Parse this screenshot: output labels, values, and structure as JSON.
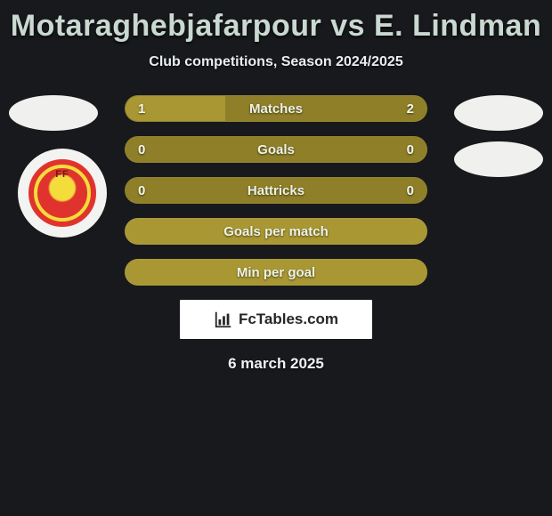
{
  "header": {
    "title": "Motaraghebjafarpour vs E. Lindman",
    "subtitle": "Club competitions, Season 2024/2025",
    "title_color": "#c9d8d0"
  },
  "stats": {
    "rows": [
      {
        "label": "Matches",
        "left": "1",
        "right": "2",
        "left_pct": 33
      },
      {
        "label": "Goals",
        "left": "0",
        "right": "0",
        "left_pct": 0
      },
      {
        "label": "Hattricks",
        "left": "0",
        "right": "0",
        "left_pct": 0
      },
      {
        "label": "Goals per match",
        "left": "",
        "right": "",
        "left_pct": 100
      },
      {
        "label": "Min per goal",
        "left": "",
        "right": "",
        "left_pct": 100
      }
    ],
    "bar_fill_color": "#a99733",
    "bar_bg_color": "#8e7f28"
  },
  "branding": {
    "text": "FcTables.com"
  },
  "footer": {
    "date": "6 march 2025"
  },
  "badges": {
    "left_flag_present": true,
    "right_flag_present": true,
    "right_flag2_present": true,
    "left_club_present": true
  },
  "colors": {
    "page_bg": "#18191c",
    "ellipse": "#f0f0ee"
  }
}
